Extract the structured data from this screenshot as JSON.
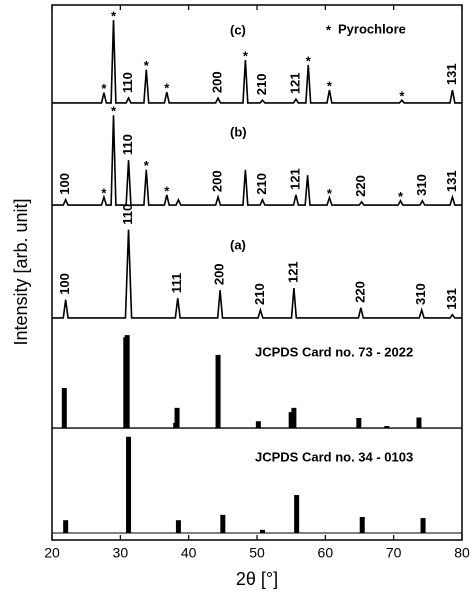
{
  "chart_data": {
    "type": "line",
    "xlabel": "2θ [°]",
    "ylabel": "Intensity [arb. unit]",
    "xlim": [
      20,
      80
    ],
    "xticks": [
      20,
      30,
      40,
      50,
      60,
      70,
      80
    ],
    "ylim": [
      0,
      100
    ],
    "marker_symbol": "*",
    "marker_legend": "Pyrochlore",
    "series": [
      {
        "name": "(c)",
        "type": "line",
        "color": "#000000",
        "baseline": 81.7,
        "x": [
          20,
          27.25,
          27.6,
          27.95,
          28.65,
          29,
          29.35,
          30.85,
          31.2,
          31.55,
          33.45,
          33.8,
          34.15,
          36.45,
          36.8,
          37.15,
          43.95,
          44.3,
          44.65,
          47.95,
          48.3,
          48.65,
          50.45,
          50.8,
          51.15,
          55.35,
          55.7,
          56.05,
          57.15,
          57.5,
          57.85,
          60.25,
          60.6,
          60.95,
          70.85,
          71.2,
          71.55,
          78.25,
          78.6,
          78.95,
          80
        ],
        "values": [
          81.7,
          81.7,
          83.6,
          81.7,
          81.7,
          97.2,
          81.7,
          81.7,
          82.6,
          81.7,
          81.7,
          87.9,
          81.7,
          81.7,
          83.7,
          81.7,
          81.7,
          82.6,
          81.7,
          81.7,
          89.7,
          81.7,
          81.7,
          82.2,
          81.7,
          81.7,
          82.4,
          81.7,
          81.7,
          88.8,
          81.7,
          81.7,
          84.1,
          81.7,
          81.7,
          82.2,
          81.7,
          81.7,
          84.1,
          81.7,
          81.7
        ],
        "markers": [
          27.6,
          29.0,
          33.8,
          36.8,
          48.3,
          57.5,
          60.6,
          71.2
        ],
        "peaks": [
          {
            "x": 31.2,
            "label": "110"
          },
          {
            "x": 44.3,
            "label": "200"
          },
          {
            "x": 50.8,
            "label": "210"
          },
          {
            "x": 55.7,
            "label": "121"
          },
          {
            "x": 78.6,
            "label": "131"
          }
        ]
      },
      {
        "name": "(b)",
        "type": "line",
        "color": "#000000",
        "baseline": 62.6,
        "x": [
          20,
          21.65,
          22,
          22.35,
          27.25,
          27.6,
          27.95,
          28.65,
          29,
          29.35,
          30.85,
          31.2,
          31.55,
          33.45,
          33.8,
          34.15,
          36.45,
          36.8,
          37.15,
          38.15,
          38.5,
          38.85,
          43.95,
          44.3,
          44.65,
          47.95,
          48.3,
          48.65,
          50.45,
          50.8,
          51.15,
          55.35,
          55.7,
          56.05,
          57.05,
          57.4,
          57.75,
          60.25,
          60.6,
          60.95,
          64.95,
          65.3,
          65.65,
          70.65,
          71,
          71.35,
          73.85,
          74.2,
          74.55,
          78.25,
          78.6,
          78.95,
          80
        ],
        "values": [
          62.6,
          62.6,
          63.6,
          62.6,
          62.6,
          64.1,
          62.6,
          62.6,
          79.4,
          62.6,
          62.6,
          71.0,
          62.6,
          62.6,
          69.2,
          62.6,
          62.6,
          64.5,
          62.6,
          62.6,
          63.6,
          62.6,
          62.6,
          64.1,
          62.6,
          62.6,
          69.2,
          62.6,
          62.6,
          63.6,
          62.6,
          62.6,
          64.5,
          62.6,
          62.6,
          68.2,
          62.6,
          62.6,
          64.0,
          62.6,
          62.6,
          63.2,
          62.6,
          62.6,
          63.4,
          62.6,
          62.6,
          63.4,
          62.6,
          62.6,
          64.1,
          62.6,
          62.6
        ],
        "markers": [
          27.6,
          29.0,
          33.8,
          36.8,
          60.6,
          71.0
        ],
        "peaks": [
          {
            "x": 22,
            "label": "100"
          },
          {
            "x": 31.2,
            "label": "110"
          },
          {
            "x": 44.3,
            "label": "200"
          },
          {
            "x": 50.8,
            "label": "210"
          },
          {
            "x": 55.7,
            "label": "121"
          },
          {
            "x": 65.3,
            "label": "220"
          },
          {
            "x": 74.2,
            "label": "310"
          },
          {
            "x": 78.6,
            "label": "131"
          }
        ]
      },
      {
        "name": "(a)",
        "type": "line",
        "color": "#000000",
        "baseline": 41.5,
        "x": [
          20,
          21.65,
          22,
          22.35,
          30.75,
          31.2,
          31.65,
          38.05,
          38.4,
          38.75,
          44.25,
          44.6,
          44.95,
          50.15,
          50.5,
          50.85,
          55.05,
          55.4,
          55.75,
          64.85,
          65.2,
          65.55,
          73.75,
          74.1,
          74.45,
          78.25,
          78.6,
          78.95,
          80
        ],
        "values": [
          41.5,
          41.5,
          44.9,
          41.5,
          41.5,
          58.0,
          41.5,
          41.5,
          45.2,
          41.5,
          41.5,
          46.7,
          41.5,
          41.5,
          43.0,
          41.5,
          41.5,
          47.1,
          41.5,
          41.5,
          43.4,
          41.5,
          41.5,
          43.0,
          41.5,
          41.5,
          42.1,
          41.5,
          41.5
        ],
        "peaks": [
          {
            "x": 22,
            "label": "100"
          },
          {
            "x": 31.2,
            "label": "110"
          },
          {
            "x": 38.4,
            "label": "111"
          },
          {
            "x": 44.6,
            "label": "200"
          },
          {
            "x": 50.5,
            "label": "210"
          },
          {
            "x": 55.4,
            "label": "121"
          },
          {
            "x": 65.2,
            "label": "220"
          },
          {
            "x": 74.1,
            "label": "310"
          },
          {
            "x": 78.6,
            "label": "131"
          }
        ]
      },
      {
        "name": "JCPDS Card no. 73 - 2022",
        "type": "stick",
        "color": "#000000",
        "baseline": 20.9,
        "x": [
          21.8,
          30.8,
          31.0,
          38.1,
          38.3,
          44.3,
          50.2,
          55.0,
          55.4,
          64.9,
          69.0,
          73.7
        ],
        "values": [
          28.4,
          37.9,
          38.3,
          21.9,
          24.7,
          34.6,
          22.2,
          23.9,
          24.7,
          22.8,
          21.3,
          22.9
        ]
      },
      {
        "name": "JCPDS Card no. 34 - 0103",
        "type": "stick",
        "color": "#000000",
        "baseline": 1.3,
        "x": [
          22,
          31.2,
          38.5,
          45,
          50.8,
          55.8,
          65.4,
          74.3
        ],
        "values": [
          3.7,
          19.3,
          3.7,
          4.7,
          1.9,
          8.4,
          4.3,
          4.1
        ]
      }
    ]
  }
}
